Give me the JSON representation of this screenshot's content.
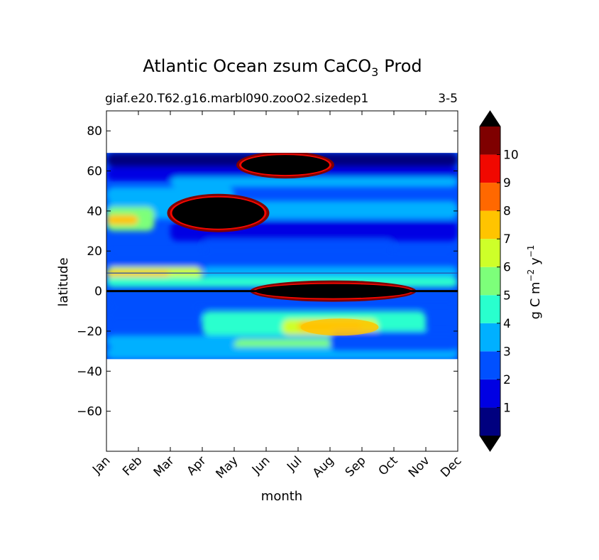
{
  "chart_data": {
    "type": "heatmap",
    "title_main": "Atlantic Ocean zsum CaCO",
    "title_sub": "3",
    "title_tail": "Prod",
    "subtitle_left": "giaf.e20.T62.g16.marbl090.zooO2.sizedep1",
    "subtitle_right": "3-5",
    "xlabel": "month",
    "ylabel": "latitude",
    "x_categories": [
      "Jan",
      "Feb",
      "Mar",
      "Apr",
      "May",
      "Jun",
      "Jul",
      "Aug",
      "Sep",
      "Oct",
      "Nov",
      "Dec"
    ],
    "xlim": [
      0,
      11
    ],
    "ylim": [
      -80,
      90
    ],
    "y_ticks": [
      80,
      60,
      40,
      20,
      0,
      -20,
      -40,
      -60
    ],
    "y_tick_labels": [
      "80",
      "60",
      "40",
      "20",
      "0",
      "−20",
      "−40",
      "−60"
    ],
    "data_lat_range": [
      -34,
      69
    ],
    "colorbar": {
      "label_main": "g C m",
      "label_exp1": "−2",
      "label_mid": " y",
      "label_exp2": "−1",
      "levels": [
        0,
        1,
        2,
        3,
        4,
        5,
        6,
        7,
        8,
        9,
        10,
        11
      ],
      "tick_values": [
        1,
        2,
        3,
        4,
        5,
        6,
        7,
        8,
        9,
        10
      ],
      "tick_labels": [
        "1",
        "2",
        "3",
        "4",
        "5",
        "6",
        "7",
        "8",
        "9",
        "10"
      ],
      "colors": [
        "#00007f",
        "#0000e3",
        "#0050ff",
        "#00b0ff",
        "#29ffce",
        "#7dff7a",
        "#ceff29",
        "#ffc400",
        "#ff6800",
        "#f10800",
        "#7f0000"
      ],
      "under_color": "#000000",
      "over_color": "#000000",
      "extend": "both"
    },
    "features": [
      {
        "name": "high-production-north-spring-bloom",
        "month_center": 3.5,
        "lat_center": 39,
        "value_min": 11
      },
      {
        "name": "high-production-subpolar-summer",
        "month_center": 5.6,
        "lat_center": 63,
        "value_min": 11
      },
      {
        "name": "high-production-equatorial-summer",
        "month_center": 7.1,
        "lat_center": 0,
        "value_min": 11
      },
      {
        "name": "moderate-production-south-subtropics",
        "month_center": 7.3,
        "lat_center": -18,
        "value_min": 6
      }
    ]
  }
}
